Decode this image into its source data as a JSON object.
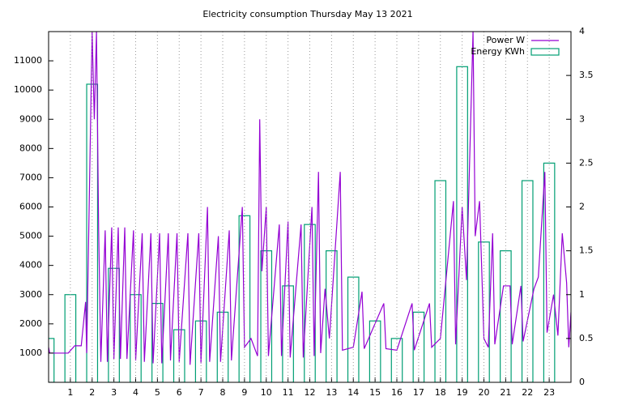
{
  "chart_data": {
    "type": "line",
    "title": "Electricity consumption Thursday May 13 2021",
    "xlim": [
      0,
      24
    ],
    "xticks": [
      1,
      2,
      3,
      4,
      5,
      6,
      7,
      8,
      9,
      10,
      11,
      12,
      13,
      14,
      15,
      16,
      17,
      18,
      19,
      20,
      21,
      22,
      23
    ],
    "ylim": [
      0,
      12000
    ],
    "yticks": [
      1000,
      2000,
      3000,
      4000,
      5000,
      6000,
      7000,
      8000,
      9000,
      10000,
      11000
    ],
    "y2lim": [
      0,
      4
    ],
    "y2ticks": [
      0,
      0.5,
      1,
      1.5,
      2,
      2.5,
      3,
      3.5,
      4
    ],
    "grid": "x",
    "legend": "top-right",
    "series": [
      {
        "name": "Power W",
        "color": "#9400d3",
        "style": "line",
        "x": [
          0,
          0.05,
          0.9,
          1.2,
          1.5,
          1.7,
          1.75,
          2.0,
          2.1,
          2.2,
          2.3,
          2.4,
          2.6,
          2.7,
          2.9,
          3.0,
          3.2,
          3.3,
          3.5,
          3.6,
          3.9,
          4.0,
          4.3,
          4.4,
          4.7,
          4.8,
          5.1,
          5.2,
          5.5,
          5.6,
          5.9,
          6.0,
          6.4,
          6.5,
          6.9,
          7.0,
          7.3,
          7.4,
          7.8,
          7.9,
          8.3,
          8.4,
          8.9,
          9.0,
          9.3,
          9.6,
          9.7,
          9.8,
          10.0,
          10.1,
          10.6,
          10.7,
          11.0,
          11.1,
          11.6,
          11.7,
          12.1,
          12.2,
          12.4,
          12.5,
          12.7,
          12.9,
          13.4,
          13.5,
          14.0,
          14.4,
          14.5,
          15.4,
          15.5,
          16.0,
          16.7,
          16.8,
          17.5,
          17.6,
          18.0,
          18.6,
          18.7,
          19.0,
          19.2,
          19.5,
          19.6,
          19.8,
          20.0,
          20.2,
          20.4,
          20.5,
          20.9,
          21.2,
          21.3,
          21.7,
          21.8,
          22.3,
          22.5,
          22.8,
          22.9,
          23.2,
          23.4,
          23.6,
          23.8,
          23.9,
          24.0
        ],
        "values": [
          1200,
          1000,
          1000,
          1250,
          1250,
          2750,
          1000,
          12000,
          9000,
          12000,
          5200,
          700,
          5200,
          700,
          5300,
          800,
          5300,
          800,
          5300,
          800,
          5200,
          750,
          5100,
          700,
          5100,
          650,
          5100,
          650,
          5100,
          750,
          5100,
          700,
          5100,
          600,
          5100,
          650,
          6000,
          700,
          5000,
          700,
          5200,
          750,
          6000,
          1200,
          1500,
          900,
          9000,
          3800,
          6000,
          900,
          5400,
          900,
          5500,
          850,
          5400,
          850,
          6000,
          900,
          7200,
          1000,
          3200,
          1500,
          7200,
          1100,
          1200,
          3100,
          1150,
          2700,
          1150,
          1100,
          2700,
          1100,
          2700,
          1200,
          1500,
          6200,
          1300,
          6000,
          3500,
          12000,
          5000,
          6200,
          1500,
          1200,
          5100,
          1300,
          3300,
          3300,
          1300,
          3300,
          1400,
          3200,
          3600,
          7200,
          1700,
          3000,
          1600,
          5100,
          3400,
          1200,
          2400
        ]
      },
      {
        "name": "Energy KWh",
        "color": "#009e73",
        "style": "box",
        "axis": "y2",
        "x": [
          0,
          1,
          2,
          3,
          4,
          5,
          6,
          7,
          8,
          9,
          10,
          11,
          12,
          13,
          14,
          15,
          16,
          17,
          18,
          19,
          20,
          21,
          22,
          23
        ],
        "values": [
          0.5,
          1.0,
          3.4,
          1.3,
          1.0,
          0.9,
          0.6,
          0.7,
          0.8,
          1.9,
          1.5,
          1.1,
          1.8,
          1.5,
          1.2,
          0.7,
          0.5,
          0.8,
          2.3,
          3.6,
          1.6,
          1.5,
          2.3,
          2.5
        ]
      }
    ]
  }
}
